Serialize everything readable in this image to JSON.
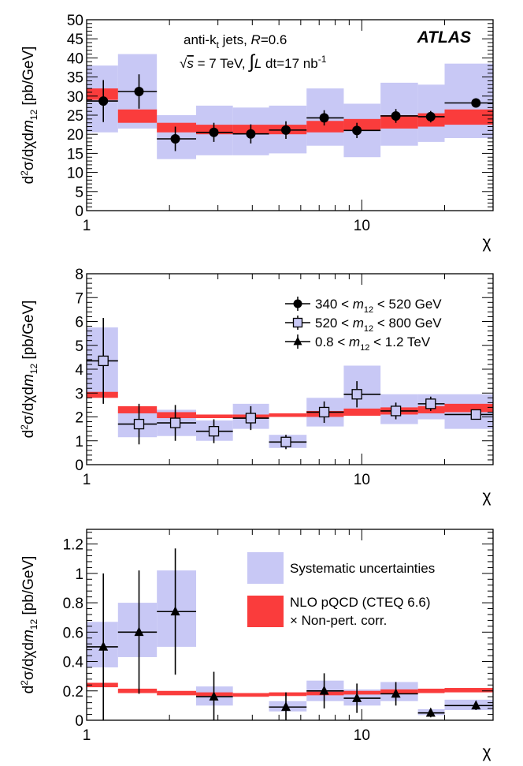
{
  "colors": {
    "syst": "#c8c8f5",
    "nlo": "#fa3c3c",
    "point": "#000000",
    "open_marker": "#c8c8f5"
  },
  "chart_data": [
    {
      "type": "scatter",
      "xscale": "log",
      "xlim": [
        1,
        30
      ],
      "ylim": [
        0,
        50
      ],
      "xlabel": "χ",
      "ylabel": "d²σ/dχdm₁₂ [pb/GeV]",
      "yticks": [
        0,
        5,
        10,
        15,
        20,
        25,
        30,
        35,
        40,
        45,
        50
      ],
      "ytick_labels": [
        "0",
        "5",
        "10",
        "15",
        "20",
        "25",
        "30",
        "35",
        "40",
        "45",
        "50"
      ],
      "xtick_labels": [
        "1",
        "10"
      ],
      "annotations": {
        "experiment": "ATLAS",
        "line1": "anti-kt jets, R=0.6",
        "line2": "√s = 7 TeV, ∫L dt=17 nb⁻¹"
      },
      "bin_edges": [
        1,
        1.3,
        1.8,
        2.5,
        3.4,
        4.6,
        6.3,
        8.6,
        11.7,
        16.0,
        20.0,
        30.0
      ],
      "marker": "filled-circle",
      "series": [
        {
          "name": "340 < m12 < 520 GeV",
          "x": [
            1.15,
            1.55,
            2.1,
            2.9,
            3.95,
            5.3,
            7.3,
            9.6,
            13.3,
            17.8,
            26.0
          ],
          "y": [
            28.7,
            31.2,
            18.8,
            20.5,
            20.1,
            21.1,
            24.3,
            21.0,
            24.8,
            24.6,
            28.2
          ],
          "yerr": [
            5.5,
            4.5,
            3.2,
            2.5,
            2.5,
            2.3,
            2.0,
            2.0,
            1.8,
            1.5,
            1.0
          ],
          "syst_low": [
            20.5,
            21.5,
            13.5,
            14.5,
            14.5,
            15.0,
            17.0,
            14.0,
            17.0,
            18.0,
            19.0
          ],
          "syst_high": [
            38.0,
            41.0,
            25.0,
            27.5,
            27.0,
            27.5,
            32.0,
            28.0,
            33.5,
            33.0,
            38.5
          ],
          "nlo_low": [
            29.0,
            23.0,
            20.5,
            20.0,
            20.0,
            20.0,
            20.5,
            21.0,
            21.5,
            22.0,
            22.5
          ],
          "nlo_high": [
            32.0,
            26.5,
            23.0,
            22.5,
            22.5,
            22.5,
            23.5,
            24.0,
            25.0,
            25.5,
            26.5
          ]
        }
      ]
    },
    {
      "type": "scatter",
      "xscale": "log",
      "xlim": [
        1,
        30
      ],
      "ylim": [
        0,
        8
      ],
      "xlabel": "χ",
      "ylabel": "d²σ/dχdm₁₂ [pb/GeV]",
      "yticks": [
        0,
        1,
        2,
        3,
        4,
        5,
        6,
        7,
        8
      ],
      "ytick_labels": [
        "0",
        "1",
        "2",
        "3",
        "4",
        "5",
        "6",
        "7",
        "8"
      ],
      "xtick_labels": [
        "1",
        "10"
      ],
      "legend": {
        "position": "top-right",
        "entries": [
          {
            "marker": "filled-circle",
            "prefix": "340 < ",
            "var": "m",
            "sub": "12",
            "suffix": " < 520 GeV"
          },
          {
            "marker": "open-square",
            "prefix": "520 < ",
            "var": "m",
            "sub": "12",
            "suffix": " < 800 GeV"
          },
          {
            "marker": "filled-triangle",
            "prefix": "0.8  < ",
            "var": "m",
            "sub": "12",
            "suffix": "  < 1.2 TeV"
          }
        ]
      },
      "bin_edges": [
        1,
        1.3,
        1.8,
        2.5,
        3.4,
        4.6,
        6.3,
        8.6,
        11.7,
        16.0,
        20.0,
        30.0
      ],
      "marker": "open-square",
      "series": [
        {
          "name": "520 < m12 < 800 GeV",
          "x": [
            1.15,
            1.55,
            2.1,
            2.9,
            3.95,
            5.3,
            7.3,
            9.6,
            13.3,
            17.8,
            26.0
          ],
          "y": [
            4.35,
            1.7,
            1.75,
            1.4,
            1.95,
            0.95,
            2.2,
            2.95,
            2.25,
            2.55,
            2.1
          ],
          "yerr": [
            1.8,
            0.85,
            0.75,
            0.5,
            0.5,
            0.3,
            0.45,
            0.55,
            0.35,
            0.3,
            0.2
          ],
          "syst_low": [
            3.0,
            1.15,
            1.2,
            1.0,
            1.5,
            0.7,
            1.6,
            2.3,
            1.7,
            1.9,
            1.5
          ],
          "syst_high": [
            5.75,
            2.3,
            2.3,
            1.85,
            2.55,
            1.25,
            2.8,
            4.15,
            2.95,
            2.95,
            2.95
          ],
          "nlo_low": [
            2.8,
            2.15,
            1.95,
            1.95,
            1.95,
            2.0,
            2.0,
            2.05,
            2.1,
            2.15,
            2.2
          ],
          "nlo_high": [
            3.05,
            2.45,
            2.2,
            2.1,
            2.1,
            2.15,
            2.25,
            2.35,
            2.4,
            2.45,
            2.55
          ]
        }
      ]
    },
    {
      "type": "scatter",
      "xscale": "log",
      "xlim": [
        1,
        30
      ],
      "ylim": [
        0,
        1.3
      ],
      "xlabel": "χ",
      "ylabel": "d²σ/dχdm₁₂ [pb/GeV]",
      "yticks": [
        0,
        0.2,
        0.4,
        0.6,
        0.8,
        1.0,
        1.2
      ],
      "ytick_labels": [
        "0",
        "0.2",
        "0.4",
        "0.6",
        "0.8",
        "1",
        "1.2"
      ],
      "xtick_labels": [
        "1",
        "10"
      ],
      "legend": {
        "position": "top-right",
        "entries": [
          {
            "patch": "syst",
            "label": "Systematic uncertainties"
          },
          {
            "patch": "nlo",
            "label": "NLO pQCD (CTEQ 6.6)",
            "label2": "× Non-pert. corr."
          }
        ]
      },
      "bin_edges": [
        1,
        1.3,
        1.8,
        2.5,
        3.4,
        4.6,
        6.3,
        8.6,
        11.7,
        16.0,
        20.0,
        30.0
      ],
      "marker": "filled-triangle",
      "series": [
        {
          "name": "0.8 < m12 < 1.2 TeV",
          "x": [
            1.15,
            1.55,
            2.1,
            2.9,
            3.95,
            5.3,
            7.3,
            9.6,
            13.3,
            17.8,
            26.0
          ],
          "y": [
            0.5,
            0.6,
            0.74,
            0.16,
            null,
            0.09,
            0.2,
            0.15,
            0.18,
            0.05,
            0.1
          ],
          "yerr": [
            0.5,
            0.42,
            0.43,
            0.17,
            null,
            0.1,
            0.12,
            0.1,
            0.08,
            0.03,
            0.03
          ],
          "syst_low": [
            0.36,
            0.43,
            0.5,
            0.1,
            null,
            0.06,
            0.13,
            0.1,
            0.13,
            0.035,
            0.07
          ],
          "syst_high": [
            0.67,
            0.8,
            1.02,
            0.23,
            null,
            0.13,
            0.27,
            0.21,
            0.26,
            0.075,
            0.14
          ],
          "nlo_low": [
            0.225,
            0.185,
            0.17,
            0.165,
            0.16,
            0.165,
            0.17,
            0.175,
            0.18,
            0.185,
            0.19
          ],
          "nlo_high": [
            0.255,
            0.215,
            0.2,
            0.19,
            0.185,
            0.19,
            0.195,
            0.2,
            0.21,
            0.215,
            0.22
          ]
        }
      ]
    }
  ]
}
